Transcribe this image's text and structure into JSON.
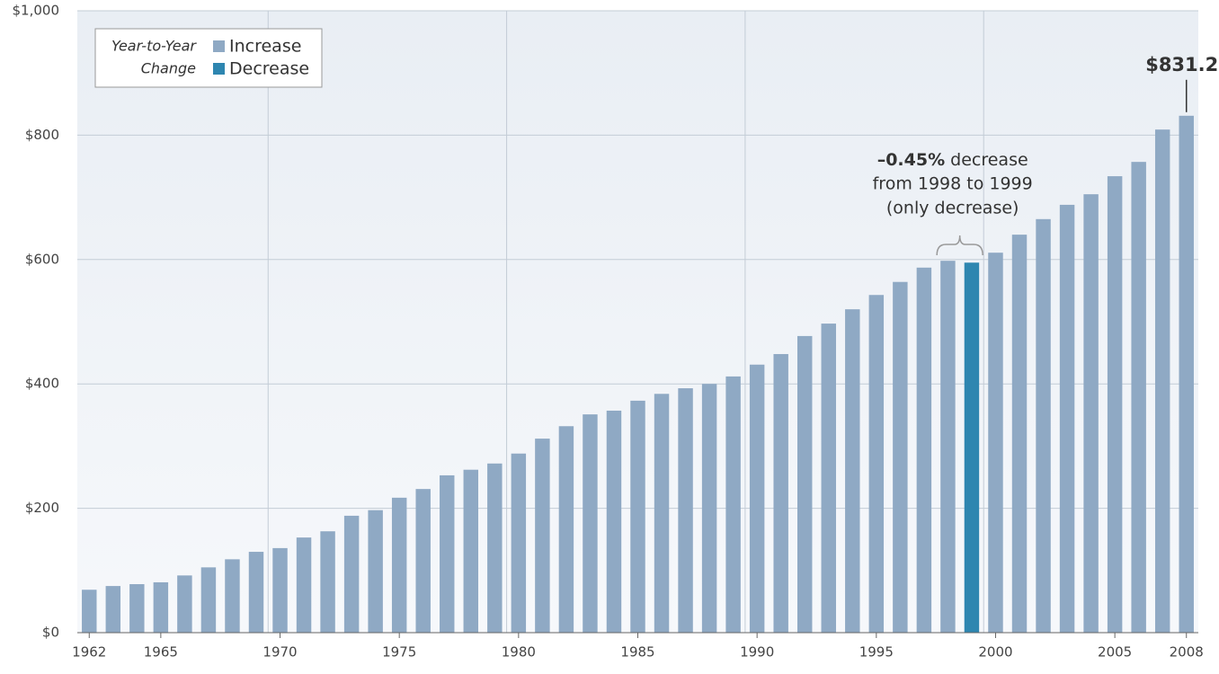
{
  "chart_data": {
    "type": "bar",
    "x": [
      1962,
      1963,
      1964,
      1965,
      1966,
      1967,
      1968,
      1969,
      1970,
      1971,
      1972,
      1973,
      1974,
      1975,
      1976,
      1977,
      1978,
      1979,
      1980,
      1981,
      1982,
      1983,
      1984,
      1985,
      1986,
      1987,
      1988,
      1989,
      1990,
      1991,
      1992,
      1993,
      1994,
      1995,
      1996,
      1997,
      1998,
      1999,
      2000,
      2001,
      2002,
      2003,
      2004,
      2005,
      2006,
      2007,
      2008
    ],
    "values": [
      69,
      75,
      78,
      81,
      92,
      105,
      118,
      130,
      136,
      153,
      163,
      188,
      197,
      217,
      231,
      253,
      262,
      272,
      288,
      312,
      332,
      351,
      357,
      373,
      384,
      393,
      400,
      412,
      431,
      448,
      477,
      497,
      520,
      543,
      564,
      587,
      598,
      595,
      611,
      640,
      665,
      688,
      705,
      734,
      757,
      809,
      831.2
    ],
    "value_labels": [
      null,
      null,
      null,
      null,
      null,
      null,
      null,
      null,
      null,
      null,
      null,
      null,
      null,
      null,
      null,
      null,
      null,
      null,
      null,
      null,
      null,
      null,
      null,
      null,
      null,
      null,
      null,
      null,
      null,
      null,
      null,
      null,
      null,
      null,
      null,
      null,
      null,
      null,
      null,
      null,
      null,
      null,
      null,
      null,
      null,
      null,
      "$831.2"
    ],
    "colors": [
      "#8fa9c4",
      "#8fa9c4",
      "#8fa9c4",
      "#8fa9c4",
      "#8fa9c4",
      "#8fa9c4",
      "#8fa9c4",
      "#8fa9c4",
      "#8fa9c4",
      "#8fa9c4",
      "#8fa9c4",
      "#8fa9c4",
      "#8fa9c4",
      "#8fa9c4",
      "#8fa9c4",
      "#8fa9c4",
      "#8fa9c4",
      "#8fa9c4",
      "#8fa9c4",
      "#8fa9c4",
      "#8fa9c4",
      "#8fa9c4",
      "#8fa9c4",
      "#8fa9c4",
      "#8fa9c4",
      "#8fa9c4",
      "#8fa9c4",
      "#8fa9c4",
      "#8fa9c4",
      "#8fa9c4",
      "#8fa9c4",
      "#8fa9c4",
      "#8fa9c4",
      "#8fa9c4",
      "#8fa9c4",
      "#8fa9c4",
      "#8fa9c4",
      "#2e86b0",
      "#8fa9c4",
      "#8fa9c4",
      "#8fa9c4",
      "#8fa9c4",
      "#8fa9c4",
      "#8fa9c4",
      "#8fa9c4",
      "#8fa9c4",
      "#8fa9c4"
    ],
    "xlim": [
      1961.5,
      2008.5
    ],
    "xticks": [
      1962,
      1965,
      1970,
      1975,
      1980,
      1985,
      1990,
      1995,
      2000,
      2005,
      2008
    ],
    "ylim": [
      0,
      1000
    ],
    "yticks": [
      {
        "value": 0,
        "label": "$0"
      },
      {
        "value": 200,
        "label": "$200"
      },
      {
        "value": 400,
        "label": "$400"
      },
      {
        "value": 600,
        "label": "$600"
      },
      {
        "value": 800,
        "label": "$800"
      },
      {
        "value": 1000,
        "label": "$1,000"
      }
    ],
    "grid": true,
    "legend": {
      "title": [
        "Year-to-Year",
        "Change"
      ],
      "items": [
        {
          "name": "Increase",
          "color": "#8fa9c4"
        },
        {
          "name": "Decrease",
          "color": "#2e86b0"
        }
      ]
    },
    "annotation": {
      "bold": "–0.45%",
      "text": [
        " decrease",
        "from 1998 to 1999",
        "(only decrease)"
      ],
      "from": 1998,
      "to": 1999
    }
  }
}
